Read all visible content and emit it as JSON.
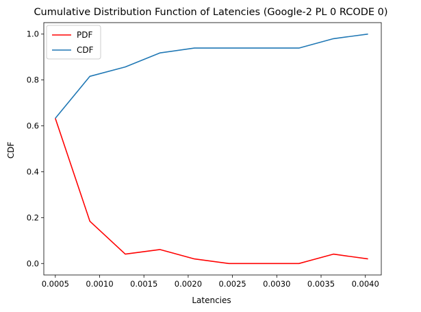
{
  "chart_data": {
    "type": "line",
    "title": "Cumulative Distribution Function of Latencies (Google-2 PL 0 RCODE 0)",
    "xlabel": "Latencies",
    "ylabel": "CDF",
    "xlim": [
      0.00037,
      0.00418
    ],
    "ylim": [
      -0.05,
      1.05
    ],
    "xticks": [
      0.0005,
      0.001,
      0.0015,
      0.002,
      0.0025,
      0.003,
      0.0035,
      0.004
    ],
    "xtick_labels": [
      "0.0005",
      "0.0010",
      "0.0015",
      "0.0020",
      "0.0025",
      "0.0030",
      "0.0035",
      "0.0040"
    ],
    "yticks": [
      0.0,
      0.2,
      0.4,
      0.6,
      0.8,
      1.0
    ],
    "ytick_labels": [
      "0.0",
      "0.2",
      "0.4",
      "0.6",
      "0.8",
      "1.0"
    ],
    "grid": false,
    "legend_position": "upper-left",
    "x": [
      0.0005,
      0.00089,
      0.00129,
      0.00168,
      0.00207,
      0.00246,
      0.00286,
      0.00325,
      0.00364,
      0.00403
    ],
    "series": [
      {
        "name": "PDF",
        "color": "#ff0000",
        "values": [
          0.633,
          0.184,
          0.041,
          0.061,
          0.02,
          0.0,
          0.0,
          0.0,
          0.041,
          0.02
        ]
      },
      {
        "name": "CDF",
        "color": "#1f77b4",
        "values": [
          0.633,
          0.816,
          0.857,
          0.918,
          0.939,
          0.939,
          0.939,
          0.939,
          0.98,
          1.0
        ]
      }
    ]
  }
}
